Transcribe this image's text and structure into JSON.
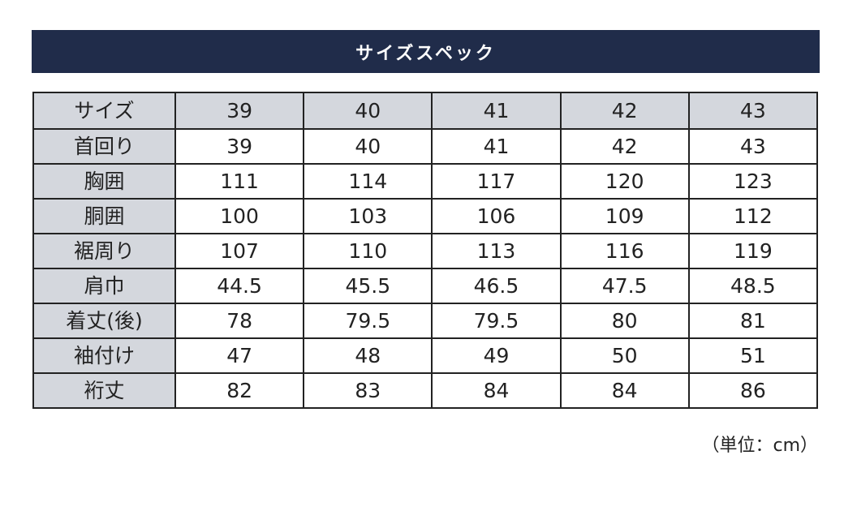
{
  "title": "サイズスペック",
  "header": {
    "label": "サイズ",
    "sizes": [
      "39",
      "40",
      "41",
      "42",
      "43"
    ]
  },
  "rows": [
    {
      "label": "首回り",
      "values": [
        "39",
        "40",
        "41",
        "42",
        "43"
      ]
    },
    {
      "label": "胸囲",
      "values": [
        "111",
        "114",
        "117",
        "120",
        "123"
      ]
    },
    {
      "label": "胴囲",
      "values": [
        "100",
        "103",
        "106",
        "109",
        "112"
      ]
    },
    {
      "label": "裾周り",
      "values": [
        "107",
        "110",
        "113",
        "116",
        "119"
      ]
    },
    {
      "label": "肩巾",
      "values": [
        "44.5",
        "45.5",
        "46.5",
        "47.5",
        "48.5"
      ]
    },
    {
      "label": "着丈(後)",
      "values": [
        "78",
        "79.5",
        "79.5",
        "80",
        "81"
      ]
    },
    {
      "label": "袖付け",
      "values": [
        "47",
        "48",
        "49",
        "50",
        "51"
      ]
    },
    {
      "label": "裄丈",
      "values": [
        "82",
        "83",
        "84",
        "84",
        "86"
      ]
    }
  ],
  "unit_note": "（単位：cm）",
  "colors": {
    "banner": "#202c4a",
    "header_cell": "#d4d7dd"
  }
}
